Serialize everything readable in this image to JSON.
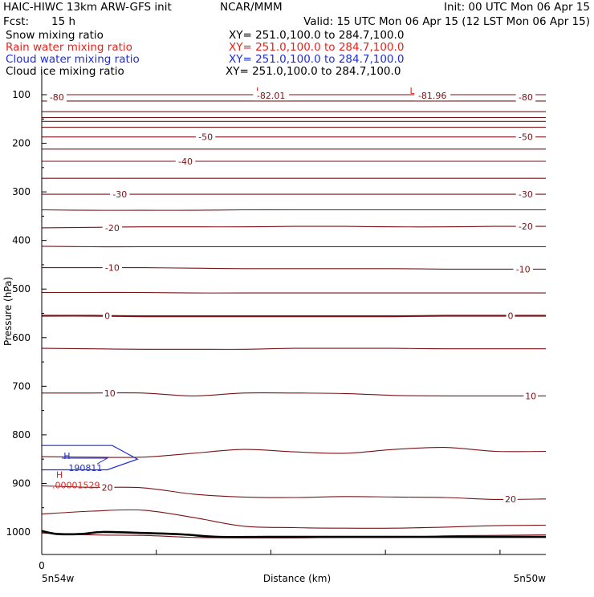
{
  "header": {
    "title_left": "HAIC-HIWC 13km ARW-GFS init",
    "org": "NCAR/MMM",
    "init": "Init: 00 UTC Mon 06 Apr 15",
    "fcst_label": "Fcst:",
    "fcst_value": "15 h",
    "valid": "Valid: 15 UTC Mon 06 Apr 15 (12 LST Mon 06 Apr 15)",
    "fields": [
      {
        "name": "Snow mixing ratio",
        "xy": "XY= 251.0,100.0 to 284.7,100.0",
        "color": "#000000"
      },
      {
        "name": "Rain water mixing ratio",
        "xy": "XY= 251.0,100.0 to 284.7,100.0",
        "color": "#e8231c"
      },
      {
        "name": "Cloud water mixing ratio",
        "xy": "XY= 251.0,100.0 to 284.7,100.0",
        "color": "#1f2fd6"
      },
      {
        "name": "Cloud ice mixing ratio",
        "xy": "XY= 251.0,100.0 to 284.7,100.0",
        "color": "#000000"
      }
    ]
  },
  "colors": {
    "temperature": "#7a1216",
    "zero_isotherm": "#7a1216",
    "terrain": "#000000",
    "cloud_water": "#1f2fd6",
    "rain_water": "#e8231c",
    "axis": "#000000"
  },
  "chart_data": {
    "type": "line",
    "title": "",
    "ylabel": "Pressure (hPa)",
    "xlabel": "Distance (km)",
    "x_origin_label": "0",
    "x_left_label": "5n54w",
    "x_right_label": "5n50w",
    "ylim": [
      1050,
      50
    ],
    "xlim": [
      0,
      100
    ],
    "y_ticks": [
      100,
      200,
      300,
      400,
      500,
      600,
      700,
      800,
      900,
      1000
    ],
    "x_tick_count": 5,
    "temperature_labels": [
      {
        "text": "-80",
        "x": 3.0,
        "p": 105
      },
      {
        "text": "-82.01",
        "x": 45.5,
        "p": 102
      },
      {
        "text": "-81.96",
        "x": 77.5,
        "p": 102
      },
      {
        "text": "-80",
        "x": 96.0,
        "p": 105
      },
      {
        "text": "-50",
        "x": 32.5,
        "p": 187
      },
      {
        "text": "-50",
        "x": 96.0,
        "p": 187
      },
      {
        "text": "-40",
        "x": 28.5,
        "p": 237
      },
      {
        "text": "-30",
        "x": 15.5,
        "p": 305
      },
      {
        "text": "-30",
        "x": 96.0,
        "p": 305
      },
      {
        "text": "-20",
        "x": 14.0,
        "p": 374
      },
      {
        "text": "-20",
        "x": 96.0,
        "p": 371
      },
      {
        "text": "-10",
        "x": 14.0,
        "p": 456
      },
      {
        "text": "-10",
        "x": 95.5,
        "p": 459
      },
      {
        "text": "0",
        "x": 13.0,
        "p": 555
      },
      {
        "text": "0",
        "x": 93.0,
        "p": 555
      },
      {
        "text": "10",
        "x": 13.5,
        "p": 714
      },
      {
        "text": "10",
        "x": 97.0,
        "p": 720
      },
      {
        "text": "20",
        "x": 13.0,
        "p": 908
      },
      {
        "text": "20",
        "x": 93.0,
        "p": 932
      }
    ],
    "pressure_levels": [
      {
        "name": "isotherm-80",
        "p": [
          100,
          100,
          100,
          100,
          100,
          100,
          100,
          100,
          100,
          100,
          100
        ]
      },
      {
        "name": "level-113",
        "p": [
          113,
          113,
          113,
          113,
          113,
          113,
          113,
          113,
          113,
          113,
          113
        ]
      },
      {
        "name": "level-135",
        "p": [
          135,
          135,
          135,
          135,
          135,
          135,
          135,
          135,
          135,
          135,
          135
        ]
      },
      {
        "name": "level-147",
        "p": [
          147,
          147,
          147,
          147,
          147,
          147,
          147,
          147,
          147,
          147,
          147
        ]
      },
      {
        "name": "level-155",
        "p": [
          155,
          155,
          155,
          155,
          155,
          155,
          155,
          155,
          155,
          155,
          155
        ]
      },
      {
        "name": "level-167",
        "p": [
          167,
          167,
          167,
          167,
          167,
          167,
          167,
          167,
          167,
          167,
          167
        ]
      },
      {
        "name": "isotherm-50",
        "p": [
          187,
          187,
          187,
          187,
          187,
          187,
          187,
          187,
          187,
          187,
          187
        ]
      },
      {
        "name": "level-212",
        "p": [
          212,
          212,
          212,
          212,
          212,
          212,
          212,
          212,
          212,
          212,
          212
        ]
      },
      {
        "name": "isotherm-40",
        "p": [
          237,
          237,
          237,
          237,
          237,
          237,
          237,
          237,
          237,
          237,
          237
        ]
      },
      {
        "name": "level-272",
        "p": [
          272,
          272,
          272,
          272,
          272,
          272,
          272,
          272,
          272,
          272,
          272
        ]
      },
      {
        "name": "isotherm-30",
        "p": [
          305,
          305,
          305,
          305,
          305,
          305,
          305,
          305,
          305,
          305,
          305
        ]
      },
      {
        "name": "level-337",
        "p": [
          337,
          338,
          338,
          338,
          337,
          337,
          337,
          337,
          337,
          337,
          337
        ]
      },
      {
        "name": "isotherm-20",
        "p": [
          374,
          373,
          372,
          372,
          372,
          371,
          371,
          372,
          372,
          371,
          371
        ]
      },
      {
        "name": "level-412",
        "p": [
          412,
          413,
          413,
          413,
          413,
          413,
          413,
          413,
          413,
          413,
          413
        ]
      },
      {
        "name": "isotherm-10",
        "p": [
          456,
          456,
          456,
          457,
          458,
          458,
          458,
          458,
          459,
          459,
          459
        ]
      },
      {
        "name": "level-507",
        "p": [
          507,
          507,
          507,
          508,
          508,
          508,
          508,
          508,
          508,
          508,
          508
        ]
      },
      {
        "name": "isotherm-0",
        "p": [
          555,
          555,
          556,
          556,
          556,
          556,
          556,
          556,
          555,
          555,
          555
        ]
      },
      {
        "name": "level-623",
        "p": [
          622,
          623,
          624,
          624,
          624,
          622,
          622,
          622,
          623,
          623,
          623
        ]
      },
      {
        "name": "isotherm-10",
        "p": [
          714,
          714,
          714,
          720,
          714,
          714,
          715,
          719,
          720,
          720,
          720
        ]
      },
      {
        "name": "level-840",
        "p": [
          845,
          846,
          846,
          838,
          830,
          835,
          838,
          830,
          826,
          834,
          834
        ]
      },
      {
        "name": "isotherm-20",
        "p": [
          905,
          908,
          909,
          922,
          928,
          929,
          927,
          928,
          929,
          933,
          932
        ]
      },
      {
        "name": "level-960",
        "p": [
          963,
          957,
          955,
          970,
          988,
          991,
          992,
          992,
          990,
          987,
          986
        ]
      },
      {
        "name": "level-1000",
        "p": [
          1002,
          1006,
          1007,
          1011,
          1012,
          1012,
          1011,
          1011,
          1008,
          1007,
          1006
        ]
      }
    ],
    "x_positions": [
      0,
      10,
      20,
      30,
      40,
      50,
      60,
      70,
      80,
      90,
      100
    ],
    "terrain_surface": {
      "x": [
        0,
        3,
        8,
        12,
        20,
        28,
        35,
        45,
        60,
        80,
        100
      ],
      "p": [
        998,
        1004,
        1004,
        1000,
        1002,
        1005,
        1010,
        1010,
        1010,
        1010,
        1010
      ]
    },
    "minimum_markers": [
      {
        "label": "L",
        "x": 43.0,
        "p": 92
      },
      {
        "label": "L",
        "x": 73.5,
        "p": 92
      }
    ],
    "cloud_water": {
      "outline": {
        "x": [
          0,
          14,
          19,
          13,
          0
        ],
        "p": [
          822,
          822,
          850,
          872,
          872
        ]
      },
      "marker": {
        "label": "H",
        "x": 5,
        "p": 843
      },
      "value": "190811"
    },
    "rain_water": {
      "marker": {
        "label": "H",
        "x": 3.5,
        "p": 882
      },
      "value": ".00001529"
    }
  }
}
